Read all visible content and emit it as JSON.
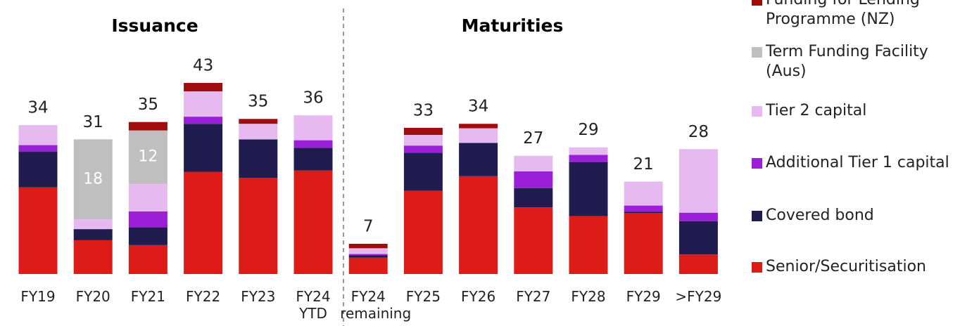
{
  "chart_data": {
    "type": "stacked_bar",
    "titles": [
      "Issuance",
      "Maturities"
    ],
    "categories": [
      "FY19",
      "FY20",
      "FY21",
      "FY22",
      "FY23",
      "FY24 YTD",
      "FY24 remaining",
      "FY25",
      "FY26",
      "FY27",
      "FY28",
      "FY29",
      ">FY29"
    ],
    "totals": [
      34,
      31,
      35,
      43,
      35,
      36,
      7,
      33,
      34,
      27,
      29,
      21,
      28
    ],
    "series": [
      {
        "name": "Senior/Securitisation",
        "color": "#dd1c1a",
        "values": [
          19.5,
          7.6,
          6.5,
          23,
          21.6,
          23.3,
          3.7,
          18.7,
          22,
          15,
          13,
          13.7,
          4.4
        ]
      },
      {
        "name": "Covered bond",
        "color": "#201c4f",
        "values": [
          8,
          2.5,
          4,
          10.8,
          8.7,
          5.1,
          0.5,
          8.6,
          7.5,
          4.3,
          12.2,
          0.3,
          7.5
        ]
      },
      {
        "name": "Additional Tier 1 capital",
        "color": "#9b1fd6",
        "values": [
          1.5,
          0,
          3.6,
          1.6,
          0,
          1.7,
          0.3,
          1.6,
          0,
          3.8,
          1.6,
          1.4,
          1.9
        ]
      },
      {
        "name": "Tier 2 capital",
        "color": "#e6b9f0",
        "values": [
          4.5,
          2.2,
          6.2,
          5.7,
          3.5,
          5.6,
          1.3,
          2.4,
          3.3,
          3.5,
          1.7,
          5.4,
          14.3
        ]
      },
      {
        "name": "Term Funding Facility (Aus)",
        "color": "#bfbfbf",
        "values": [
          0,
          18,
          12,
          0,
          0,
          0,
          0,
          0,
          0,
          0,
          0,
          0,
          0
        ],
        "show_labels": true
      },
      {
        "name": "Funding for Lending Programme (NZ)",
        "color": "#a10d0d",
        "values": [
          0,
          0,
          1.9,
          1.9,
          1.1,
          0,
          1,
          1.6,
          1,
          0,
          0,
          0,
          0
        ]
      }
    ],
    "ylim": [
      0,
      43
    ]
  }
}
